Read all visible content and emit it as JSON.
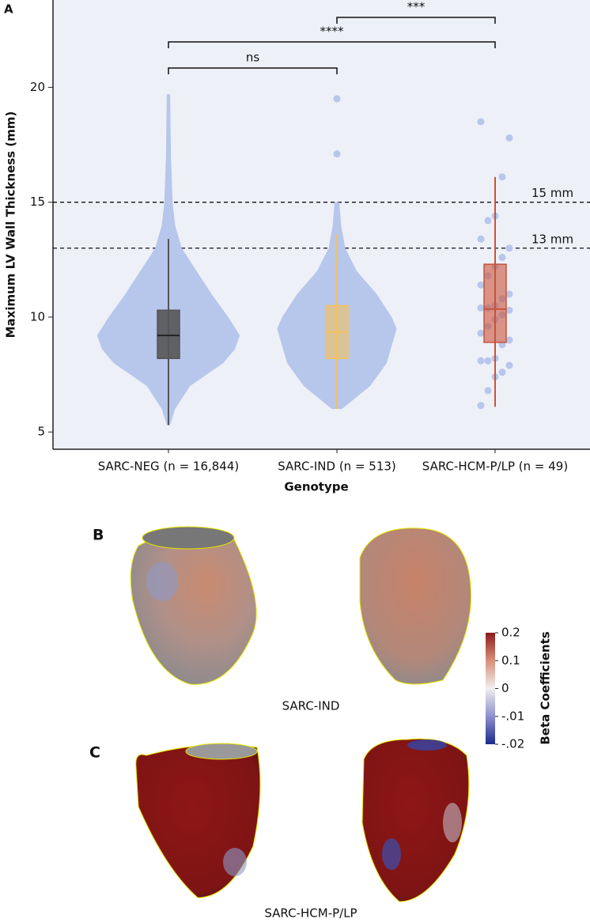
{
  "chart_data": {
    "type": "box",
    "panel_label": "A",
    "ylabel": "Maximum LV Wall Thickness (mm)",
    "xlabel": "Genotype",
    "categories": [
      "SARC-NEG (n = 16,844)",
      "SARC-IND (n = 513)",
      "SARC-HCM-P/LP (n = 49)"
    ],
    "ylim": [
      4.25,
      23.8
    ],
    "yticks": [
      5,
      10,
      15,
      20
    ],
    "point_color": "#b7c6eb",
    "boxes": [
      {
        "whisker_low": 5.3,
        "q1": 8.2,
        "median": 9.2,
        "q3": 10.3,
        "whisker_high": 13.4,
        "color": "#555555"
      },
      {
        "whisker_low": 6.0,
        "q1": 8.2,
        "median": 9.35,
        "q3": 10.5,
        "whisker_high": 13.6,
        "color": "#f2c25e"
      },
      {
        "whisker_low": 6.1,
        "q1": 8.9,
        "median": 10.35,
        "q3": 12.3,
        "whisker_high": 16.1,
        "color": "#c9533a"
      }
    ],
    "swarm": [
      {
        "y": [
          5.3,
          6,
          7,
          8,
          8.6,
          9.2,
          10,
          11,
          12,
          13,
          14,
          15,
          17,
          19.7
        ],
        "width": [
          0.01,
          0.04,
          0.13,
          0.33,
          0.4,
          0.43,
          0.36,
          0.26,
          0.17,
          0.08,
          0.04,
          0.025,
          0.015,
          0.01
        ]
      },
      {
        "y": [
          6,
          7,
          8,
          9,
          9.5,
          10,
          11,
          12,
          13,
          14,
          15
        ],
        "width": [
          0.03,
          0.2,
          0.3,
          0.34,
          0.36,
          0.33,
          0.24,
          0.12,
          0.05,
          0.025,
          0.015
        ]
      },
      {
        "y": [],
        "width": []
      }
    ],
    "points": [
      [],
      [
        17.1,
        19.5
      ],
      [
        6.15,
        6.8,
        7.4,
        7.6,
        7.9,
        8.1,
        8.1,
        8.2,
        8.8,
        9.0,
        9.3,
        9.6,
        9.9,
        10.1,
        10.3,
        10.4,
        10.4,
        10.5,
        10.8,
        11.0,
        11.4,
        11.8,
        12.2,
        12.6,
        13.0,
        13.4,
        14.2,
        14.4,
        16.1,
        17.8,
        18.5
      ]
    ],
    "reference_lines": [
      {
        "value": 15,
        "label": "15 mm"
      },
      {
        "value": 13,
        "label": "13 mm"
      }
    ],
    "brackets": [
      "ns",
      "****",
      "***"
    ]
  },
  "panels": [
    {
      "label": "B",
      "caption": "SARC-IND"
    },
    {
      "label": "C",
      "caption": "SARC-HCM-P/LP"
    }
  ],
  "colorbar": {
    "title": "Beta Coefficients",
    "ticks": [
      0.2,
      0.1,
      0,
      {
        "value": -0.01,
        "label": "-.01"
      },
      {
        "value": -0.02,
        "label": "-.02"
      }
    ],
    "colors": [
      "#8b1a1a",
      "#d9907a",
      "#f0eeee",
      "#8d8fce",
      "#1b2a8c"
    ]
  }
}
